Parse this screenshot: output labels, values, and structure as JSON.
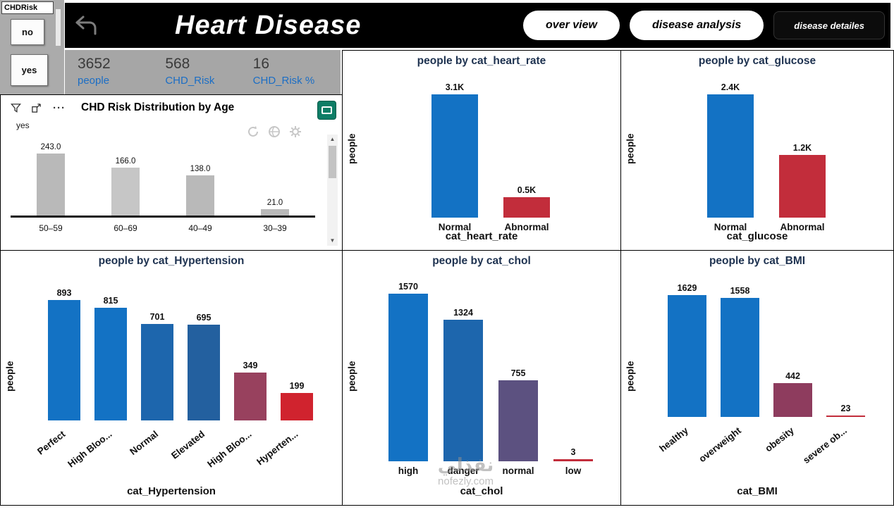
{
  "slicer": {
    "title": "CHDRisk",
    "options": [
      "no",
      "yes"
    ]
  },
  "header": {
    "title": "Heart Disease",
    "nav": [
      {
        "label": "over view",
        "active": false
      },
      {
        "label": "disease analysis",
        "active": false
      },
      {
        "label": "disease detailes",
        "active": true
      }
    ]
  },
  "kpis": [
    {
      "value": "3652",
      "label": "people"
    },
    {
      "value": "568",
      "label": "CHD_Risk"
    },
    {
      "value": "16",
      "label": "CHD_Risk %"
    }
  ],
  "icons": {
    "scroll_up": "▲",
    "scroll_down": "▼",
    "ellipsis": "···"
  },
  "watermark": {
    "line1": "نفذلي",
    "line2": "nofezly.com"
  },
  "colors": {
    "bar_blue": "#1372c4",
    "bar_red": "#c22d3b",
    "bar_maroon": "#98415e",
    "bar_purple": "#5c5180",
    "bar_gray": "#b9b9b9",
    "kpi_bg": "#a6a6a6",
    "kpi_label_blue": "#1b6ec5",
    "header_bg": "#000000",
    "slicer_bg": "#ababab",
    "green_icon": "#0e7d66"
  },
  "chart_data": [
    {
      "type": "bar",
      "title": "CHD Risk Distribution by Age",
      "legend": "yes",
      "categories": [
        "50–59",
        "60–69",
        "40–49",
        "30–39"
      ],
      "values": [
        243.0,
        166.0,
        138.0,
        21.0
      ],
      "value_labels": [
        "243.0",
        "166.0",
        "138.0",
        "21.0"
      ],
      "colors": [
        "#b9b9b9",
        "#c6c6c6",
        "#b9b9b9",
        "#b9b9b9"
      ],
      "ylim": [
        0,
        250
      ],
      "xlabel": "",
      "ylabel": "",
      "rotate_labels": false,
      "grid": false,
      "legend_position": "top-left"
    },
    {
      "type": "bar",
      "title": "people by cat_heart_rate",
      "categories": [
        "Normal",
        "Abnormal"
      ],
      "values": [
        3100,
        500
      ],
      "value_labels": [
        "3.1K",
        "0.5K"
      ],
      "colors": [
        "#1372c4",
        "#c22d3b"
      ],
      "ylim": [
        0,
        3300
      ],
      "xlabel": "cat_heart_rate",
      "ylabel": "people",
      "rotate_labels": false,
      "grid": false
    },
    {
      "type": "bar",
      "title": "people by cat_glucose",
      "categories": [
        "Normal",
        "Abnormal"
      ],
      "values": [
        2400,
        1200
      ],
      "value_labels": [
        "2.4K",
        "1.2K"
      ],
      "colors": [
        "#1372c4",
        "#c22d3b"
      ],
      "ylim": [
        0,
        2600
      ],
      "xlabel": "cat_glucose",
      "ylabel": "people",
      "rotate_labels": false,
      "grid": false
    },
    {
      "type": "bar",
      "title": "people by cat_Hypertension",
      "categories": [
        "Perfect",
        "High Bloo...",
        "Normal",
        "Elevated",
        "High Bloo...",
        "Hyperten..."
      ],
      "values": [
        893,
        815,
        701,
        695,
        349,
        199
      ],
      "value_labels": [
        "893",
        "815",
        "701",
        "695",
        "349",
        "199"
      ],
      "colors": [
        "#1372c4",
        "#1372c4",
        "#1d66ad",
        "#23609f",
        "#98415e",
        "#d0232e"
      ],
      "ylim": [
        0,
        960
      ],
      "xlabel": "cat_Hypertension",
      "ylabel": "people",
      "rotate_labels": true,
      "grid": false
    },
    {
      "type": "bar",
      "title": "people by cat_chol",
      "categories": [
        "high",
        "danger",
        "normal",
        "low"
      ],
      "values": [
        1570,
        1324,
        755,
        3
      ],
      "value_labels": [
        "1570",
        "1324",
        "755",
        "3"
      ],
      "colors": [
        "#1372c4",
        "#1d66ad",
        "#5c5180",
        "#c22d3b"
      ],
      "ylim": [
        0,
        1700
      ],
      "xlabel": "cat_chol",
      "ylabel": "people",
      "rotate_labels": false,
      "grid": false
    },
    {
      "type": "bar",
      "title": "people by cat_BMI",
      "categories": [
        "healthy",
        "overweight",
        "obesity",
        "severe ob..."
      ],
      "values": [
        1629,
        1558,
        442,
        23
      ],
      "value_labels": [
        "1629",
        "1558",
        "442",
        "23"
      ],
      "colors": [
        "#1372c4",
        "#1372c4",
        "#8e3c5e",
        "#c22d3b"
      ],
      "ylim": [
        0,
        1750
      ],
      "xlabel": "cat_BMI",
      "ylabel": "people",
      "rotate_labels": true,
      "grid": false
    }
  ]
}
